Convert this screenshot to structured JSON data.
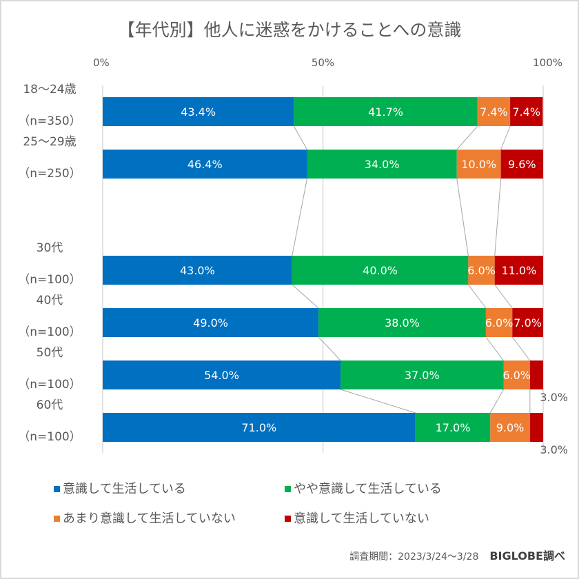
{
  "chart_data": {
    "type": "bar",
    "orientation": "horizontal",
    "stacked": "percent",
    "title": "【年代別】他人に迷惑をかけることへの意識",
    "xlabel": "",
    "ylabel": "",
    "xlim": [
      0,
      100
    ],
    "x_ticks": [
      "0%",
      "50%",
      "100%"
    ],
    "x_tick_values": [
      0,
      50,
      100
    ],
    "grid": true,
    "legend_position": "bottom",
    "categories": [
      {
        "label": "18～24歳",
        "n": "（n=350）",
        "gap_before": false
      },
      {
        "label": "25～29歳",
        "n": "（n=250）",
        "gap_before": false
      },
      {
        "label": "30代",
        "n": "（n=100）",
        "gap_before": true
      },
      {
        "label": "40代",
        "n": "（n=100）",
        "gap_before": false
      },
      {
        "label": "50代",
        "n": "（n=100）",
        "gap_before": false
      },
      {
        "label": "60代",
        "n": "（n=100）",
        "gap_before": false
      }
    ],
    "series": [
      {
        "name": "意識して生活している",
        "color": "#0070c0",
        "values": [
          43.4,
          46.4,
          43.0,
          49.0,
          54.0,
          71.0
        ],
        "labels": [
          "43.4%",
          "46.4%",
          "43.0%",
          "49.0%",
          "54.0%",
          "71.0%"
        ]
      },
      {
        "name": "やや意識して生活している",
        "color": "#00b050",
        "values": [
          41.7,
          34.0,
          40.0,
          38.0,
          37.0,
          17.0
        ],
        "labels": [
          "41.7%",
          "34.0%",
          "40.0%",
          "38.0%",
          "37.0%",
          "17.0%"
        ]
      },
      {
        "name": "あまり意識して生活していない",
        "color": "#ed7d31",
        "values": [
          7.4,
          10.0,
          6.0,
          6.0,
          6.0,
          9.0
        ],
        "labels": [
          "7.4%",
          "10.0%",
          "6.0%",
          "6.0%",
          "6.0%",
          "9.0%"
        ]
      },
      {
        "name": "意識して生活していない",
        "color": "#c00000",
        "values": [
          7.4,
          9.6,
          11.0,
          7.0,
          3.0,
          3.0
        ],
        "labels": [
          "7.4%",
          "9.6%",
          "11.0%",
          "7.0%",
          "3.0%",
          "3.0%"
        ]
      }
    ],
    "series_lines": true
  },
  "footer": {
    "period": "調査期間：2023/3/24～3/28",
    "source": "BIGLOBE調べ"
  }
}
